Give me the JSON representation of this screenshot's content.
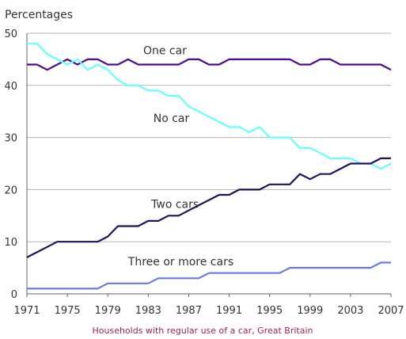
{
  "chart_data": {
    "type": "line",
    "ylabel": "Percentages",
    "caption": "Households with regular use of a car, Great Britain",
    "ylim": [
      0,
      50
    ],
    "xlim": [
      1971,
      2007
    ],
    "yticks": [
      0,
      10,
      20,
      30,
      40,
      50
    ],
    "xticks": [
      1971,
      1975,
      1979,
      1983,
      1987,
      1991,
      1995,
      1999,
      2003,
      2007
    ],
    "grid": true,
    "series": [
      {
        "name": "One car",
        "color": "#4b0f8c",
        "x": [
          1971,
          1972,
          1973,
          1974,
          1975,
          1976,
          1977,
          1978,
          1979,
          1980,
          1981,
          1982,
          1983,
          1984,
          1985,
          1986,
          1987,
          1988,
          1989,
          1990,
          1991,
          1992,
          1993,
          1994,
          1995,
          1996,
          1997,
          1998,
          1999,
          2000,
          2001,
          2002,
          2003,
          2004,
          2005,
          2006,
          2007
        ],
        "values": [
          44,
          44,
          43,
          44,
          45,
          44,
          45,
          45,
          44,
          44,
          45,
          44,
          44,
          44,
          44,
          44,
          45,
          45,
          44,
          44,
          45,
          45,
          45,
          45,
          45,
          45,
          45,
          44,
          44,
          45,
          45,
          44,
          44,
          44,
          44,
          44,
          43
        ]
      },
      {
        "name": "No car",
        "color": "#66ffff",
        "x": [
          1971,
          1972,
          1973,
          1974,
          1975,
          1976,
          1977,
          1978,
          1979,
          1980,
          1981,
          1982,
          1983,
          1984,
          1985,
          1986,
          1987,
          1988,
          1989,
          1990,
          1991,
          1992,
          1993,
          1994,
          1995,
          1996,
          1997,
          1998,
          1999,
          2000,
          2001,
          2002,
          2003,
          2004,
          2005,
          2006,
          2007
        ],
        "values": [
          48,
          48,
          46,
          45,
          44,
          45,
          43,
          44,
          43,
          41,
          40,
          40,
          39,
          39,
          38,
          38,
          36,
          35,
          34,
          33,
          32,
          32,
          31,
          32,
          30,
          30,
          30,
          28,
          28,
          27,
          26,
          26,
          26,
          25,
          25,
          24,
          25
        ]
      },
      {
        "name": "Two cars",
        "color": "#24105a",
        "x": [
          1971,
          1972,
          1973,
          1974,
          1975,
          1976,
          1977,
          1978,
          1979,
          1980,
          1981,
          1982,
          1983,
          1984,
          1985,
          1986,
          1987,
          1988,
          1989,
          1990,
          1991,
          1992,
          1993,
          1994,
          1995,
          1996,
          1997,
          1998,
          1999,
          2000,
          2001,
          2002,
          2003,
          2004,
          2005,
          2006,
          2007
        ],
        "values": [
          7,
          8,
          9,
          10,
          10,
          10,
          10,
          10,
          11,
          13,
          13,
          13,
          14,
          14,
          15,
          15,
          16,
          17,
          18,
          19,
          19,
          20,
          20,
          20,
          21,
          21,
          21,
          23,
          22,
          23,
          23,
          24,
          25,
          25,
          25,
          26,
          26
        ]
      },
      {
        "name": "Three or more cars",
        "color": "#6a79e6",
        "x": [
          1971,
          1972,
          1973,
          1974,
          1975,
          1976,
          1977,
          1978,
          1979,
          1980,
          1981,
          1982,
          1983,
          1984,
          1985,
          1986,
          1987,
          1988,
          1989,
          1990,
          1991,
          1992,
          1993,
          1994,
          1995,
          1996,
          1997,
          1998,
          1999,
          2000,
          2001,
          2002,
          2003,
          2004,
          2005,
          2006,
          2007
        ],
        "values": [
          1,
          1,
          1,
          1,
          1,
          1,
          1,
          1,
          2,
          2,
          2,
          2,
          2,
          3,
          3,
          3,
          3,
          3,
          4,
          4,
          4,
          4,
          4,
          4,
          4,
          4,
          5,
          5,
          5,
          5,
          5,
          5,
          5,
          5,
          5,
          6,
          6
        ]
      }
    ]
  }
}
